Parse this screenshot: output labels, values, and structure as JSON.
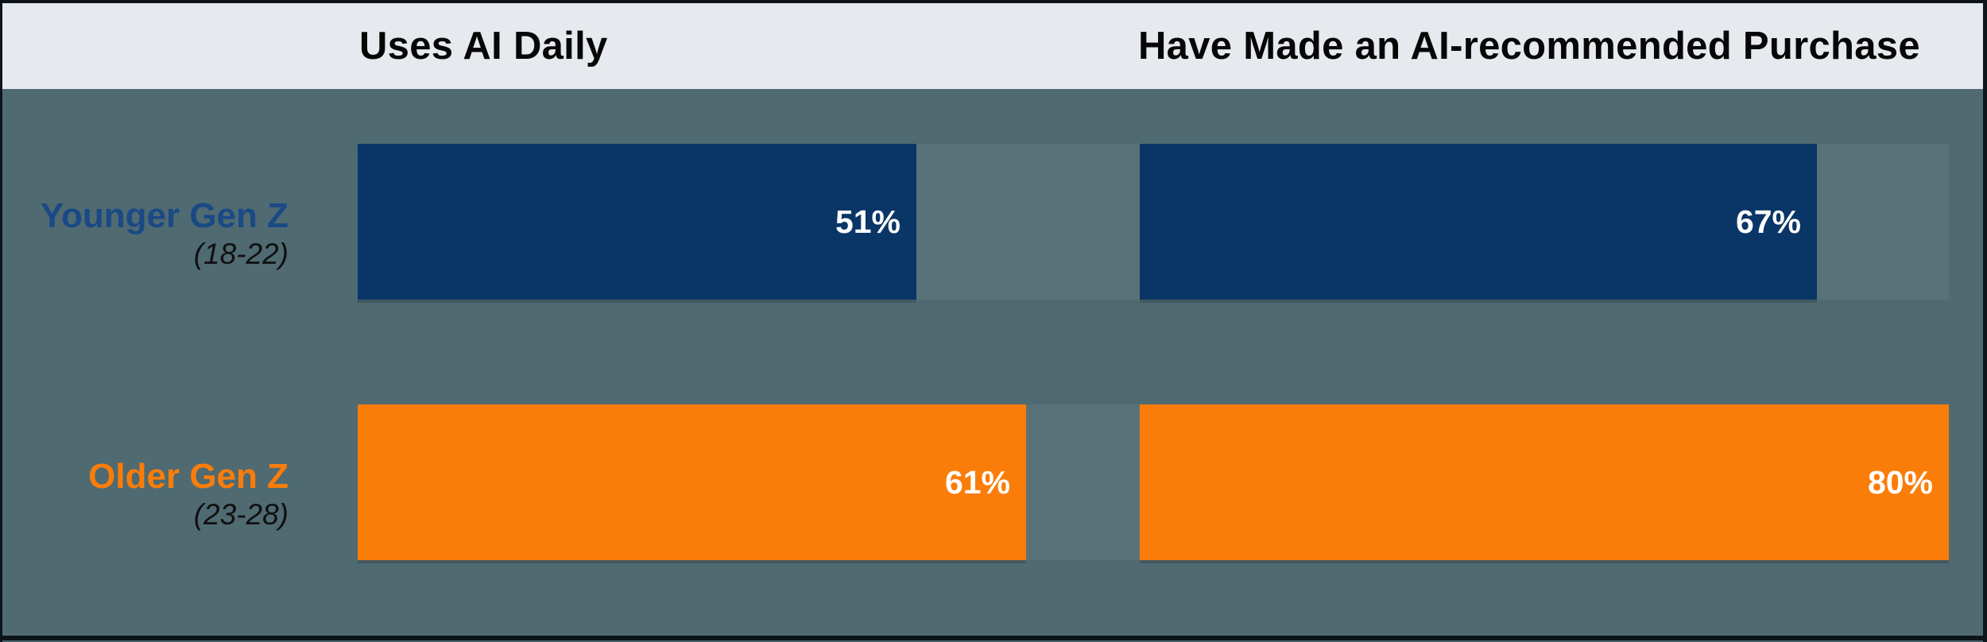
{
  "chart_data": {
    "type": "bar",
    "orientation": "horizontal",
    "title": "",
    "categories": [
      "Younger Gen Z (18-22)",
      "Older Gen Z (23-28)"
    ],
    "series": [
      {
        "name": "Uses AI Daily",
        "values": [
          51,
          61
        ]
      },
      {
        "name": "Have Made an AI-recommended Purchase",
        "values": [
          67,
          80
        ]
      }
    ],
    "unit": "%",
    "value_labels": "inside-end",
    "xlim": [
      0,
      100
    ],
    "grid": false,
    "legend": false
  },
  "groups": [
    {
      "name": "Younger Gen Z",
      "age_range": "(18-22)"
    },
    {
      "name": "Older Gen Z",
      "age_range": "(23-28)"
    }
  ],
  "colors": {
    "younger_bar": "#0a3567",
    "younger_label": "#1a4a85",
    "older_bar": "#fb7d09",
    "header_bg": "#e6e9ed",
    "header_text": "#070707",
    "body_bg": "#506a72",
    "row_track": "rgba(255,255,255,0.055)",
    "value_text": "#ffffff",
    "age_text": "#101010",
    "frame": "#0d151a"
  }
}
